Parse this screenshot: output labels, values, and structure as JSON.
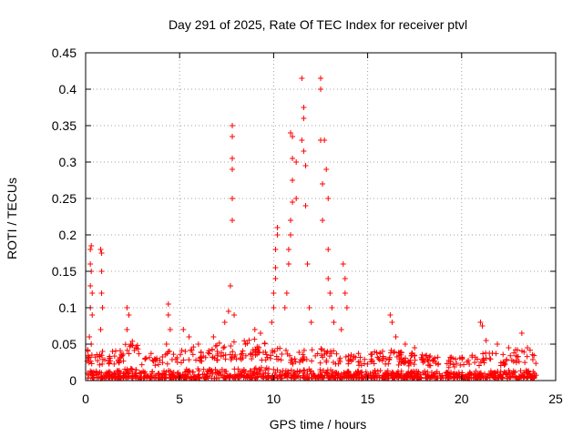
{
  "chart_data": {
    "type": "scatter",
    "title": "Day 291 of 2025, Rate Of TEC Index for receiver ptvl",
    "xlabel": "GPS time / hours",
    "ylabel": "ROTI / TECUs",
    "xlim": [
      0,
      25
    ],
    "ylim": [
      0,
      0.45
    ],
    "xticks": [
      0,
      5,
      10,
      15,
      20,
      25
    ],
    "xtick_labels": [
      "0",
      "5",
      "10",
      "15",
      "20",
      "25"
    ],
    "yticks": [
      0,
      0.05,
      0.1,
      0.15,
      0.2,
      0.25,
      0.3,
      0.35,
      0.4,
      0.45
    ],
    "ytick_labels": [
      "0",
      "0.05",
      "0.1",
      "0.15",
      "0.2",
      "0.25",
      "0.3",
      "0.35",
      "0.4",
      "0.45"
    ],
    "grid": true,
    "marker": "+",
    "colors": {
      "points": "#ff0000",
      "grid": "#a0a0a0",
      "axis": "#000000"
    },
    "series": [
      {
        "name": "ROTI",
        "points": [
          [
            0.1,
            0.01
          ],
          [
            0.15,
            0.03
          ],
          [
            0.2,
            0.06
          ],
          [
            0.25,
            0.1
          ],
          [
            0.25,
            0.13
          ],
          [
            0.25,
            0.16
          ],
          [
            0.25,
            0.18
          ],
          [
            0.3,
            0.185
          ],
          [
            0.3,
            0.15
          ],
          [
            0.35,
            0.12
          ],
          [
            0.35,
            0.09
          ],
          [
            0.3,
            0.05
          ],
          [
            0.8,
            0.18
          ],
          [
            0.85,
            0.175
          ],
          [
            0.85,
            0.15
          ],
          [
            0.85,
            0.12
          ],
          [
            0.9,
            0.1
          ],
          [
            0.8,
            0.07
          ],
          [
            0.9,
            0.04
          ],
          [
            2.2,
            0.1
          ],
          [
            2.3,
            0.09
          ],
          [
            2.2,
            0.07
          ],
          [
            2.4,
            0.05
          ],
          [
            4.4,
            0.105
          ],
          [
            4.4,
            0.09
          ],
          [
            4.5,
            0.07
          ],
          [
            4.3,
            0.05
          ],
          [
            5.2,
            0.07
          ],
          [
            5.5,
            0.06
          ],
          [
            5.3,
            0.04
          ],
          [
            6.0,
            0.05
          ],
          [
            6.8,
            0.06
          ],
          [
            7.0,
            0.04
          ],
          [
            7.4,
            0.08
          ],
          [
            7.6,
            0.095
          ],
          [
            7.7,
            0.13
          ],
          [
            7.8,
            0.22
          ],
          [
            7.8,
            0.25
          ],
          [
            7.8,
            0.29
          ],
          [
            7.8,
            0.305
          ],
          [
            7.8,
            0.335
          ],
          [
            7.8,
            0.35
          ],
          [
            7.9,
            0.09
          ],
          [
            8.5,
            0.05
          ],
          [
            9.0,
            0.07
          ],
          [
            9.3,
            0.065
          ],
          [
            9.9,
            0.08
          ],
          [
            10.0,
            0.1
          ],
          [
            10.0,
            0.12
          ],
          [
            10.1,
            0.14
          ],
          [
            10.1,
            0.155
          ],
          [
            10.1,
            0.18
          ],
          [
            10.2,
            0.2
          ],
          [
            10.2,
            0.21
          ],
          [
            10.6,
            0.1
          ],
          [
            10.7,
            0.12
          ],
          [
            10.8,
            0.16
          ],
          [
            10.8,
            0.18
          ],
          [
            10.9,
            0.2
          ],
          [
            10.9,
            0.22
          ],
          [
            11.0,
            0.245
          ],
          [
            11.0,
            0.275
          ],
          [
            11.0,
            0.305
          ],
          [
            11.0,
            0.335
          ],
          [
            10.9,
            0.34
          ],
          [
            11.2,
            0.3
          ],
          [
            11.2,
            0.25
          ],
          [
            11.5,
            0.415
          ],
          [
            11.6,
            0.375
          ],
          [
            11.6,
            0.36
          ],
          [
            11.5,
            0.33
          ],
          [
            11.6,
            0.315
          ],
          [
            11.7,
            0.295
          ],
          [
            11.7,
            0.24
          ],
          [
            11.8,
            0.16
          ],
          [
            11.9,
            0.1
          ],
          [
            12.0,
            0.08
          ],
          [
            12.5,
            0.415
          ],
          [
            12.5,
            0.4
          ],
          [
            12.5,
            0.33
          ],
          [
            12.6,
            0.27
          ],
          [
            12.6,
            0.22
          ],
          [
            12.7,
            0.33
          ],
          [
            12.8,
            0.29
          ],
          [
            12.9,
            0.25
          ],
          [
            12.9,
            0.18
          ],
          [
            12.9,
            0.14
          ],
          [
            13.0,
            0.12
          ],
          [
            13.1,
            0.1
          ],
          [
            13.2,
            0.08
          ],
          [
            13.7,
            0.16
          ],
          [
            13.8,
            0.14
          ],
          [
            13.8,
            0.12
          ],
          [
            13.9,
            0.1
          ],
          [
            13.6,
            0.07
          ],
          [
            16.2,
            0.09
          ],
          [
            16.3,
            0.08
          ],
          [
            16.5,
            0.06
          ],
          [
            17.0,
            0.05
          ],
          [
            17.5,
            0.045
          ],
          [
            21.0,
            0.08
          ],
          [
            21.1,
            0.075
          ],
          [
            21.3,
            0.055
          ],
          [
            21.9,
            0.05
          ],
          [
            22.5,
            0.045
          ],
          [
            23.2,
            0.065
          ],
          [
            23.5,
            0.045
          ]
        ],
        "baseline": {
          "x_range": [
            0,
            24
          ],
          "envelope": [
            [
              0,
              0.04
            ],
            [
              1,
              0.035
            ],
            [
              2,
              0.045
            ],
            [
              2.5,
              0.06
            ],
            [
              3,
              0.035
            ],
            [
              4,
              0.035
            ],
            [
              5,
              0.04
            ],
            [
              6,
              0.045
            ],
            [
              7,
              0.05
            ],
            [
              8,
              0.05
            ],
            [
              9,
              0.055
            ],
            [
              10,
              0.045
            ],
            [
              11,
              0.04
            ],
            [
              12,
              0.045
            ],
            [
              13,
              0.04
            ],
            [
              14,
              0.035
            ],
            [
              15,
              0.035
            ],
            [
              16,
              0.04
            ],
            [
              17,
              0.035
            ],
            [
              18,
              0.035
            ],
            [
              19,
              0.03
            ],
            [
              20,
              0.03
            ],
            [
              21,
              0.035
            ],
            [
              22,
              0.035
            ],
            [
              23,
              0.04
            ],
            [
              24,
              0.04
            ]
          ]
        }
      }
    ]
  }
}
